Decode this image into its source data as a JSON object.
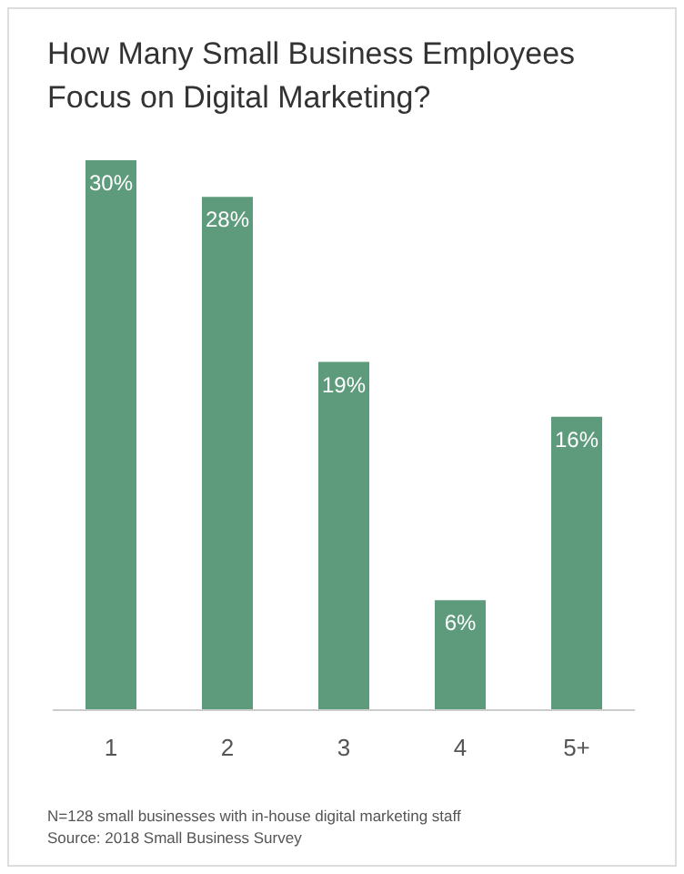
{
  "chart_data": {
    "type": "bar",
    "title": "How Many Small Business Employees Focus on Digital Marketing?",
    "categories": [
      "1",
      "2",
      "3",
      "4",
      "5+"
    ],
    "values": [
      30,
      28,
      19,
      6,
      16
    ],
    "value_labels": [
      "30%",
      "28%",
      "19%",
      "6%",
      "16%"
    ],
    "color": "#5e9b7c",
    "grid": false,
    "legend": false,
    "annotations": [
      "N=128 small businesses with in-house digital marketing staff",
      "Source: 2018 Small Business Survey"
    ]
  }
}
